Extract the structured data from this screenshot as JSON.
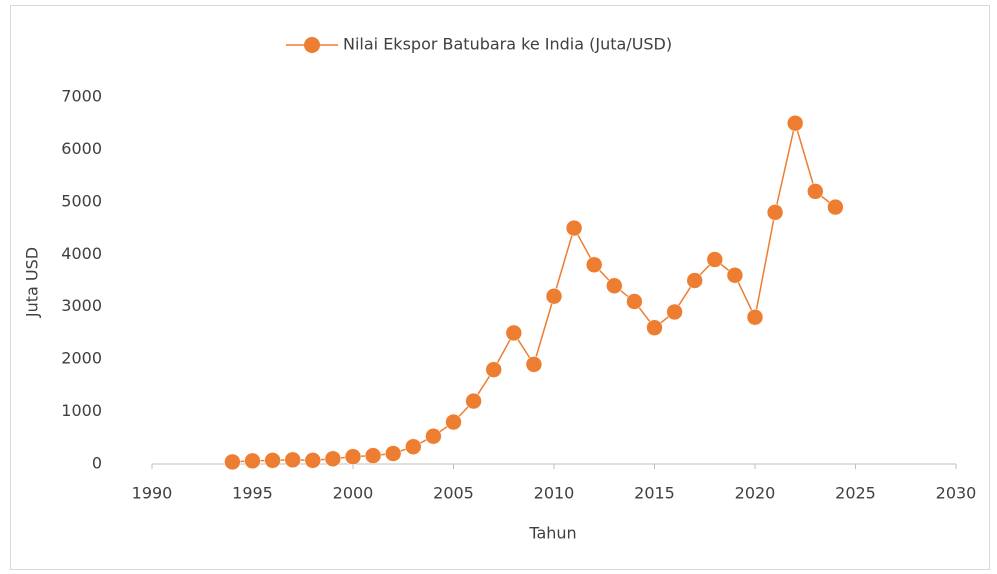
{
  "chart_data": {
    "type": "line",
    "x_label": "Tahun",
    "y_label": "Juta USD",
    "x": [
      1994,
      1995,
      1996,
      1997,
      1998,
      1999,
      2000,
      2001,
      2002,
      2003,
      2004,
      2005,
      2006,
      2007,
      2008,
      2009,
      2010,
      2011,
      2012,
      2013,
      2014,
      2015,
      2016,
      2017,
      2018,
      2019,
      2020,
      2021,
      2022,
      2023,
      2024
    ],
    "series": [
      {
        "name": "Nilai Ekspor Batubara ke India (Juta/USD)",
        "color": "#ED7D31",
        "values": [
          40,
          60,
          70,
          80,
          70,
          100,
          140,
          160,
          200,
          330,
          530,
          800,
          1200,
          1800,
          2500,
          1900,
          3200,
          4500,
          3800,
          3400,
          3100,
          2600,
          2900,
          3500,
          3900,
          3600,
          2800,
          4800,
          6500,
          5200,
          4900
        ]
      }
    ],
    "xlim": [
      1990,
      2030
    ],
    "xticks": [
      1990,
      1995,
      2000,
      2005,
      2010,
      2015,
      2020,
      2025,
      2030
    ],
    "ylim": [
      0,
      7000
    ],
    "yticks": [
      0,
      1000,
      2000,
      3000,
      4000,
      5000,
      6000,
      7000
    ],
    "grid": false,
    "legend": "top"
  }
}
